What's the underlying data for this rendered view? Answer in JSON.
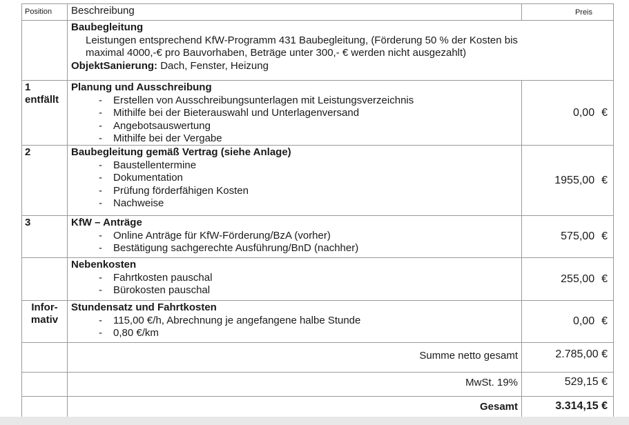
{
  "header": {
    "position": "Position",
    "description": "Beschreibung",
    "price": "Preis"
  },
  "intro": {
    "title": "Baubegleitung",
    "text_line1": "Leistungen entsprechend KfW-Programm 431 Baubegleitung, (Förderung 50 % der Kosten bis",
    "text_line2": "maximal 4000,-€ pro Bauvorhaben, Beträge unter 300,- € werden nicht ausgezahlt)",
    "object_label": "ObjektSanierung:",
    "object_value": " Dach, Fenster, Heizung"
  },
  "rows": [
    {
      "pos_line1": "1",
      "pos_line2": "entfällt",
      "title": "Planung und Ausschreibung",
      "items": [
        "Erstellen von Ausschreibungsunterlagen mit Leistungsverzeichnis",
        "Mithilfe bei der Bieterauswahl und Unterlagenversand",
        "Angebotsauswertung",
        "Mithilfe bei der Vergabe"
      ],
      "price": "0,00",
      "currency": "€"
    },
    {
      "pos_line1": "2",
      "title": "Baubegleitung gemäß Vertrag (siehe Anlage)",
      "items": [
        "Baustellentermine",
        "Dokumentation",
        "Prüfung förderfähigen Kosten",
        "Nachweise"
      ],
      "price": "1955,00",
      "currency": "€"
    },
    {
      "pos_line1": "3",
      "title": "KfW – Anträge",
      "items": [
        "Online Anträge für KfW-Förderung/BzA (vorher)",
        "Bestätigung sachgerechte Ausführung/BnD (nachher)"
      ],
      "price": "575,00",
      "currency": "€"
    },
    {
      "title": "Nebenkosten",
      "items": [
        "Fahrtkosten pauschal",
        "Bürokosten pauschal"
      ],
      "price": "255,00",
      "currency": "€"
    },
    {
      "pos_line1": "Infor-",
      "pos_line2": "mativ",
      "title": "Stundensatz und Fahrtkosten",
      "items": [
        "115,00 €/h, Abrechnung je angefangene halbe Stunde",
        "0,80 €/km"
      ],
      "price": "0,00",
      "currency": "€"
    }
  ],
  "totals": {
    "net_label": "Summe netto gesamt",
    "net_value": "2.785,00 €",
    "vat_label": "MwSt. 19%",
    "vat_value": "529,15 €",
    "total_label": "Gesamt",
    "total_value": "3.314,15 €"
  }
}
